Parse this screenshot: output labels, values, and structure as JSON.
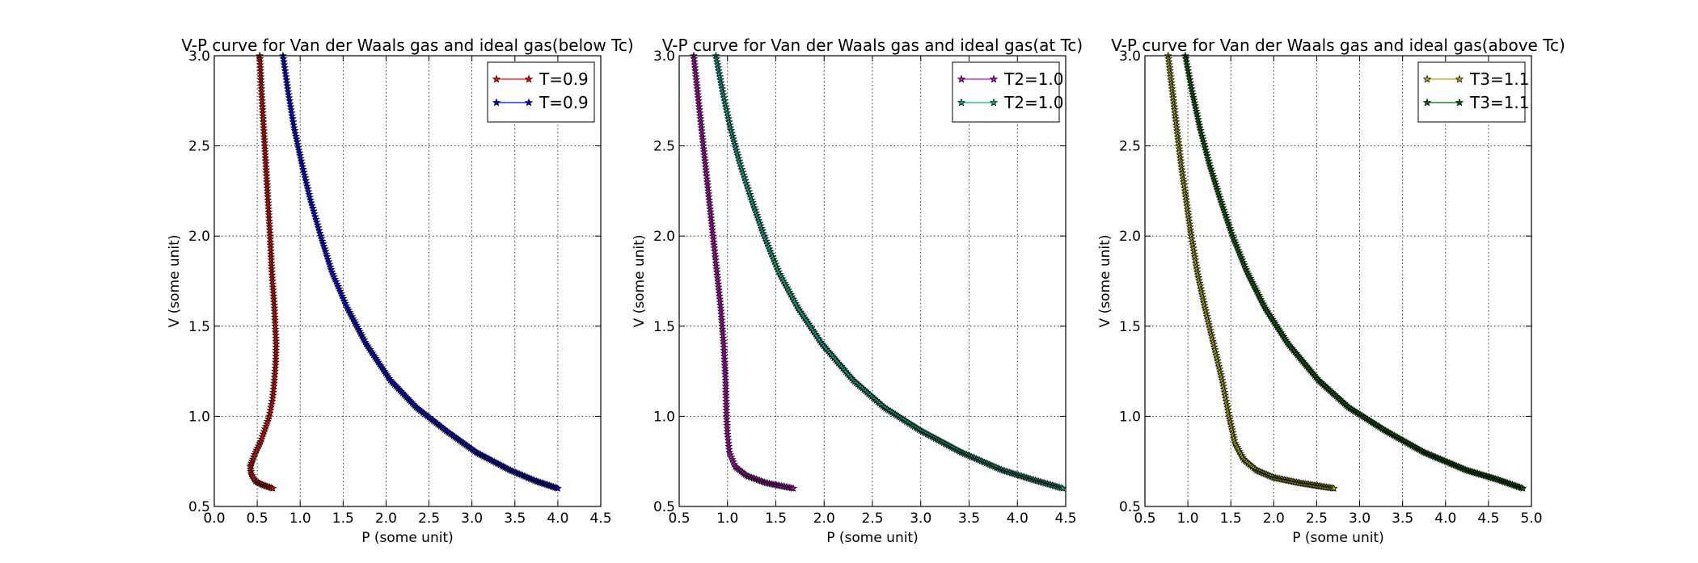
{
  "chart_data": [
    {
      "type": "line",
      "title": "V-P curve for Van der Waals gas and ideal gas(below Tc)",
      "xlabel": "P (some unit)",
      "ylabel": "V (some unit)",
      "xlim": [
        0.0,
        4.5
      ],
      "ylim": [
        0.5,
        3.0
      ],
      "xticks": [
        "0.0",
        "0.5",
        "1.0",
        "1.5",
        "2.0",
        "2.5",
        "3.0",
        "3.5",
        "4.0",
        "4.5"
      ],
      "yticks": [
        "0.5",
        "1.0",
        "1.5",
        "2.0",
        "2.5",
        "3.0"
      ],
      "grid": true,
      "legend": "top-right",
      "series": [
        {
          "name": "T=0.9",
          "color": "#ff0000",
          "marker": "star",
          "points": [
            [
              0.53,
              3.0
            ],
            [
              0.55,
              2.8
            ],
            [
              0.575,
              2.6
            ],
            [
              0.6,
              2.4
            ],
            [
              0.625,
              2.2
            ],
            [
              0.65,
              2.0
            ],
            [
              0.67,
              1.8
            ],
            [
              0.7,
              1.6
            ],
            [
              0.72,
              1.4
            ],
            [
              0.715,
              1.3
            ],
            [
              0.7,
              1.2
            ],
            [
              0.68,
              1.1
            ],
            [
              0.64,
              1.0
            ],
            [
              0.59,
              0.93
            ],
            [
              0.54,
              0.86
            ],
            [
              0.48,
              0.8
            ],
            [
              0.44,
              0.75
            ],
            [
              0.42,
              0.72
            ],
            [
              0.43,
              0.68
            ],
            [
              0.48,
              0.64
            ],
            [
              0.56,
              0.62
            ],
            [
              0.68,
              0.6
            ]
          ]
        },
        {
          "name": "T=0.9",
          "color": "#0000ff",
          "marker": "star",
          "points": [
            [
              0.8,
              3.0
            ],
            [
              0.86,
              2.8
            ],
            [
              0.93,
              2.6
            ],
            [
              1.02,
              2.4
            ],
            [
              1.12,
              2.2
            ],
            [
              1.24,
              2.0
            ],
            [
              1.37,
              1.8
            ],
            [
              1.55,
              1.6
            ],
            [
              1.77,
              1.4
            ],
            [
              2.05,
              1.2
            ],
            [
              2.35,
              1.05
            ],
            [
              2.7,
              0.92
            ],
            [
              3.05,
              0.8
            ],
            [
              3.45,
              0.7
            ],
            [
              3.75,
              0.64
            ],
            [
              4.0,
              0.6
            ]
          ]
        }
      ]
    },
    {
      "type": "line",
      "title": "V-P curve for Van der Waals gas and ideal gas(at Tc)",
      "xlabel": "P (some unit)",
      "ylabel": "V (some unit)",
      "xlim": [
        0.5,
        4.5
      ],
      "ylim": [
        0.5,
        3.0
      ],
      "xticks": [
        "0.5",
        "1.0",
        "1.5",
        "2.0",
        "2.5",
        "3.0",
        "3.5",
        "4.0",
        "4.5"
      ],
      "yticks": [
        "0.5",
        "1.0",
        "1.5",
        "2.0",
        "2.5",
        "3.0"
      ],
      "grid": true,
      "legend": "top-right",
      "series": [
        {
          "name": "T2=1.0",
          "color": "#cc00cc",
          "marker": "star",
          "points": [
            [
              0.65,
              3.0
            ],
            [
              0.69,
              2.8
            ],
            [
              0.73,
              2.6
            ],
            [
              0.77,
              2.4
            ],
            [
              0.81,
              2.2
            ],
            [
              0.85,
              2.0
            ],
            [
              0.89,
              1.8
            ],
            [
              0.93,
              1.6
            ],
            [
              0.96,
              1.4
            ],
            [
              0.98,
              1.2
            ],
            [
              0.99,
              1.0
            ],
            [
              1.0,
              0.9
            ],
            [
              1.02,
              0.8
            ],
            [
              1.08,
              0.72
            ],
            [
              1.2,
              0.67
            ],
            [
              1.4,
              0.63
            ],
            [
              1.68,
              0.6
            ]
          ]
        },
        {
          "name": "T2=1.0",
          "color": "#00aa88",
          "marker": "star",
          "points": [
            [
              0.88,
              3.0
            ],
            [
              0.95,
              2.8
            ],
            [
              1.03,
              2.6
            ],
            [
              1.13,
              2.4
            ],
            [
              1.25,
              2.2
            ],
            [
              1.38,
              2.0
            ],
            [
              1.53,
              1.8
            ],
            [
              1.73,
              1.6
            ],
            [
              1.98,
              1.4
            ],
            [
              2.3,
              1.2
            ],
            [
              2.62,
              1.05
            ],
            [
              3.0,
              0.92
            ],
            [
              3.42,
              0.8
            ],
            [
              3.85,
              0.7
            ],
            [
              4.15,
              0.65
            ],
            [
              4.47,
              0.6
            ]
          ]
        }
      ]
    },
    {
      "type": "line",
      "title": "V-P curve for Van der Waals gas and ideal gas(above Tc)",
      "xlabel": "P (some unit)",
      "ylabel": "V (some unit)",
      "xlim": [
        0.5,
        5.0
      ],
      "ylim": [
        0.5,
        3.0
      ],
      "xticks": [
        "0.5",
        "1.0",
        "1.5",
        "2.0",
        "2.5",
        "3.0",
        "3.5",
        "4.0",
        "4.5",
        "5.0"
      ],
      "yticks": [
        "0.5",
        "1.0",
        "1.5",
        "2.0",
        "2.5",
        "3.0"
      ],
      "grid": true,
      "legend": "top-right",
      "series": [
        {
          "name": "T3=1.1",
          "color": "#aaaa00",
          "marker": "star",
          "points": [
            [
              0.77,
              3.0
            ],
            [
              0.82,
              2.8
            ],
            [
              0.87,
              2.6
            ],
            [
              0.92,
              2.4
            ],
            [
              0.98,
              2.2
            ],
            [
              1.04,
              2.0
            ],
            [
              1.11,
              1.8
            ],
            [
              1.2,
              1.6
            ],
            [
              1.3,
              1.4
            ],
            [
              1.4,
              1.2
            ],
            [
              1.48,
              1.0
            ],
            [
              1.55,
              0.85
            ],
            [
              1.65,
              0.76
            ],
            [
              1.8,
              0.7
            ],
            [
              2.0,
              0.66
            ],
            [
              2.3,
              0.63
            ],
            [
              2.7,
              0.6
            ]
          ]
        },
        {
          "name": "T3=1.1",
          "color": "#006600",
          "marker": "star",
          "points": [
            [
              0.97,
              3.0
            ],
            [
              1.05,
              2.8
            ],
            [
              1.14,
              2.6
            ],
            [
              1.25,
              2.4
            ],
            [
              1.38,
              2.2
            ],
            [
              1.52,
              2.0
            ],
            [
              1.69,
              1.8
            ],
            [
              1.9,
              1.6
            ],
            [
              2.17,
              1.4
            ],
            [
              2.52,
              1.2
            ],
            [
              2.87,
              1.05
            ],
            [
              3.3,
              0.92
            ],
            [
              3.75,
              0.8
            ],
            [
              4.25,
              0.7
            ],
            [
              4.6,
              0.65
            ],
            [
              4.9,
              0.6
            ]
          ]
        }
      ]
    }
  ]
}
